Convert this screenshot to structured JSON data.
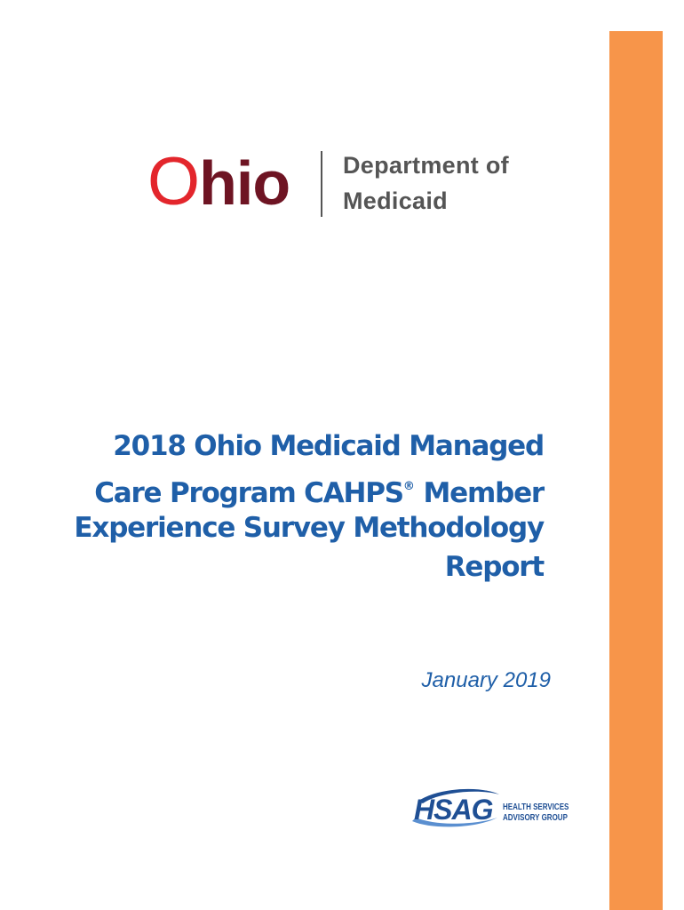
{
  "logo": {
    "initial": "O",
    "rest": "hio",
    "department_line_1": "Department of",
    "department_line_2": "Medicaid"
  },
  "title": {
    "line_1": "2018 Ohio Medicaid Managed",
    "line_2": "Care Program CAHPS",
    "line_2_mark": "®",
    "line_2_rest": " Member",
    "line_3": "Experience Survey Methodology",
    "line_4": "Report"
  },
  "date": "January 2019",
  "footer_logo": {
    "acronym": "HSAG",
    "name_line_1": "HEALTH SERVICES",
    "name_line_2": "ADVISORY GROUP"
  }
}
